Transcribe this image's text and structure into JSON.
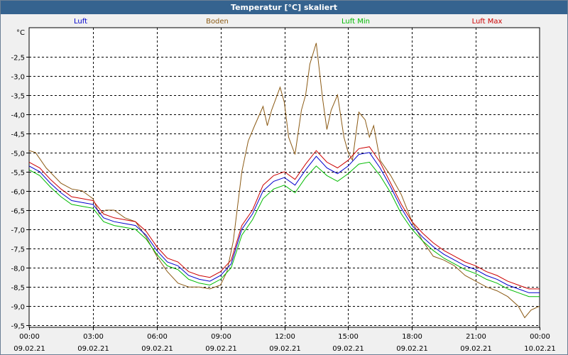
{
  "window": {
    "title": "Temperatur [°C] skaliert"
  },
  "colors": {
    "luft": "#0000cc",
    "boden": "#8b5a14",
    "luft_min": "#00bb00",
    "luft_max": "#cc0000"
  },
  "chart_data": {
    "type": "line",
    "title": "Temperatur [°C] skaliert",
    "ylabel": "°C",
    "xlabel": "",
    "ylim": [
      -9.55,
      -1.75
    ],
    "xlim": [
      0,
      24
    ],
    "grid": true,
    "legend_position": "top",
    "yticks": [
      "-2,5",
      "-3,0",
      "-3,5",
      "-4,0",
      "-4,5",
      "-5,0",
      "-5,5",
      "-6,0",
      "-6,5",
      "-7,0",
      "-7,5",
      "-8,0",
      "-8,5",
      "-9,0",
      "-9,5"
    ],
    "ytick_values": [
      -2.5,
      -3.0,
      -3.5,
      -4.0,
      -4.5,
      -5.0,
      -5.5,
      -6.0,
      -6.5,
      -7.0,
      -7.5,
      -8.0,
      -8.5,
      -9.0,
      -9.5
    ],
    "xticks": [
      {
        "value": 0,
        "time": "00:00",
        "date": "09.02.21"
      },
      {
        "value": 3,
        "time": "03:00",
        "date": "09.02.21"
      },
      {
        "value": 6,
        "time": "06:00",
        "date": "09.02.21"
      },
      {
        "value": 9,
        "time": "09:00",
        "date": "09.02.21"
      },
      {
        "value": 12,
        "time": "12:00",
        "date": "09.02.21"
      },
      {
        "value": 15,
        "time": "15:00",
        "date": "09.02.21"
      },
      {
        "value": 18,
        "time": "18:00",
        "date": "09.02.21"
      },
      {
        "value": 21,
        "time": "21:00",
        "date": "09.02.21"
      },
      {
        "value": 24,
        "time": "00:00",
        "date": "10.02.21"
      }
    ],
    "series": [
      {
        "name": "Luft",
        "color": "#0000cc",
        "x": [
          0,
          0.5,
          1,
          1.5,
          2,
          2.5,
          3,
          3.5,
          4,
          4.5,
          5,
          5.5,
          6,
          6.5,
          7,
          7.5,
          8,
          8.5,
          9,
          9.5,
          10,
          10.5,
          11,
          11.5,
          12,
          12.5,
          13,
          13.5,
          14,
          14.5,
          15,
          15.5,
          16,
          16.5,
          17,
          17.5,
          18,
          18.5,
          19,
          19.5,
          20,
          20.5,
          21,
          21.5,
          22,
          22.5,
          23,
          23.5,
          24
        ],
        "y": [
          -5.35,
          -5.5,
          -5.8,
          -6.05,
          -6.25,
          -6.3,
          -6.35,
          -6.7,
          -6.8,
          -6.85,
          -6.9,
          -7.15,
          -7.55,
          -7.85,
          -7.95,
          -8.2,
          -8.3,
          -8.35,
          -8.2,
          -7.9,
          -7.0,
          -6.6,
          -6.0,
          -5.75,
          -5.65,
          -5.85,
          -5.45,
          -5.1,
          -5.4,
          -5.55,
          -5.35,
          -5.05,
          -5.0,
          -5.4,
          -5.9,
          -6.45,
          -6.9,
          -7.2,
          -7.45,
          -7.65,
          -7.8,
          -7.95,
          -8.05,
          -8.2,
          -8.3,
          -8.45,
          -8.55,
          -8.65,
          -8.65
        ]
      },
      {
        "name": "Boden",
        "color": "#8b5a14",
        "x": [
          0,
          0.3,
          0.8,
          1.5,
          2,
          2.5,
          3,
          3.3,
          3.6,
          4,
          4.5,
          5,
          5.5,
          6,
          6.5,
          7,
          7.5,
          8,
          8.5,
          9,
          9.3,
          9.6,
          10,
          10.3,
          10.6,
          11,
          11.2,
          11.4,
          11.8,
          12,
          12.2,
          12.5,
          12.8,
          13,
          13.2,
          13.5,
          13.8,
          14,
          14.2,
          14.5,
          14.8,
          15,
          15.2,
          15.5,
          15.8,
          16,
          16.2,
          16.5,
          17,
          17.5,
          18,
          18.5,
          19,
          19.5,
          20,
          20.5,
          21,
          21.5,
          22,
          22.5,
          23,
          23.3,
          23.6,
          24
        ],
        "y": [
          -4.95,
          -5.0,
          -5.4,
          -5.8,
          -5.95,
          -6.0,
          -6.2,
          -6.6,
          -6.5,
          -6.5,
          -6.7,
          -6.8,
          -7.2,
          -7.7,
          -8.1,
          -8.4,
          -8.5,
          -8.5,
          -8.55,
          -8.45,
          -8.1,
          -7.3,
          -5.5,
          -4.7,
          -4.3,
          -3.8,
          -4.3,
          -3.9,
          -3.3,
          -3.7,
          -4.6,
          -5.05,
          -3.9,
          -3.5,
          -2.7,
          -2.15,
          -3.6,
          -4.4,
          -3.9,
          -3.5,
          -4.6,
          -5.0,
          -5.2,
          -3.95,
          -4.15,
          -4.6,
          -4.3,
          -5.2,
          -5.6,
          -6.1,
          -6.8,
          -7.3,
          -7.7,
          -7.8,
          -7.95,
          -8.2,
          -8.35,
          -8.5,
          -8.6,
          -8.75,
          -9.0,
          -9.3,
          -9.1,
          -9.0
        ]
      },
      {
        "name": "Luft Min",
        "color": "#00bb00",
        "x": [
          0,
          0.5,
          1,
          1.5,
          2,
          2.5,
          3,
          3.5,
          4,
          4.5,
          5,
          5.5,
          6,
          6.5,
          7,
          7.5,
          8,
          8.5,
          9,
          9.5,
          10,
          10.5,
          11,
          11.5,
          12,
          12.5,
          13,
          13.5,
          14,
          14.5,
          15,
          15.5,
          16,
          16.5,
          17,
          17.5,
          18,
          18.5,
          19,
          19.5,
          20,
          20.5,
          21,
          21.5,
          22,
          22.5,
          23,
          23.5,
          24
        ],
        "y": [
          -5.45,
          -5.6,
          -5.9,
          -6.15,
          -6.35,
          -6.4,
          -6.45,
          -6.8,
          -6.9,
          -6.95,
          -7.0,
          -7.25,
          -7.65,
          -7.95,
          -8.05,
          -8.3,
          -8.4,
          -8.45,
          -8.3,
          -8.0,
          -7.15,
          -6.75,
          -6.2,
          -5.95,
          -5.85,
          -6.05,
          -5.65,
          -5.35,
          -5.6,
          -5.75,
          -5.55,
          -5.3,
          -5.25,
          -5.6,
          -6.05,
          -6.6,
          -7.0,
          -7.3,
          -7.55,
          -7.75,
          -7.9,
          -8.05,
          -8.15,
          -8.3,
          -8.4,
          -8.55,
          -8.65,
          -8.75,
          -8.75
        ]
      },
      {
        "name": "Luft Max",
        "color": "#cc0000",
        "x": [
          0,
          0.5,
          1,
          1.5,
          2,
          2.5,
          3,
          3.5,
          4,
          4.5,
          5,
          5.5,
          6,
          6.5,
          7,
          7.5,
          8,
          8.5,
          9,
          9.5,
          10,
          10.5,
          11,
          11.5,
          12,
          12.5,
          13,
          13.5,
          14,
          14.5,
          15,
          15.5,
          16,
          16.5,
          17,
          17.5,
          18,
          18.5,
          19,
          19.5,
          20,
          20.5,
          21,
          21.5,
          22,
          22.5,
          23,
          23.5,
          24
        ],
        "y": [
          -5.25,
          -5.4,
          -5.7,
          -5.95,
          -6.15,
          -6.2,
          -6.25,
          -6.6,
          -6.7,
          -6.75,
          -6.8,
          -7.05,
          -7.45,
          -7.75,
          -7.85,
          -8.1,
          -8.2,
          -8.25,
          -8.1,
          -7.8,
          -6.9,
          -6.5,
          -5.85,
          -5.6,
          -5.5,
          -5.7,
          -5.3,
          -4.95,
          -5.25,
          -5.4,
          -5.2,
          -4.9,
          -4.85,
          -5.25,
          -5.8,
          -6.35,
          -6.8,
          -7.1,
          -7.35,
          -7.55,
          -7.7,
          -7.85,
          -7.95,
          -8.1,
          -8.2,
          -8.35,
          -8.45,
          -8.55,
          -8.55
        ]
      }
    ]
  }
}
